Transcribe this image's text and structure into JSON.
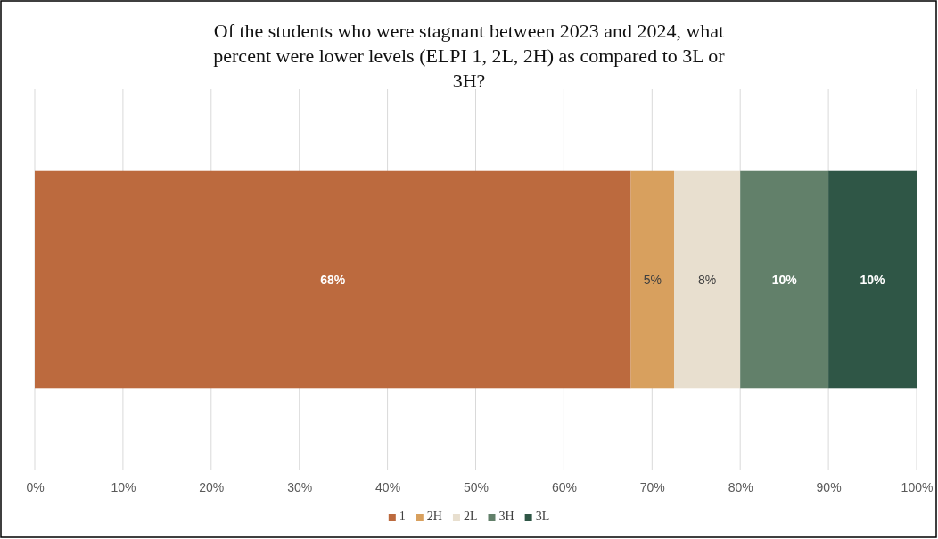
{
  "chart_data": {
    "type": "bar",
    "orientation": "horizontal",
    "stacked": true,
    "title": "Of the students who were stagnant between 2023 and 2024, what percent were lower levels (ELPI 1, 2L, 2H) as compared to 3L or 3H?",
    "categories": [
      null
    ],
    "series": [
      {
        "name": "1",
        "color": "#bc6a3e",
        "values": [
          67.6
        ],
        "value_labels": [
          "68%"
        ]
      },
      {
        "name": "2H",
        "color": "#d8a05e",
        "values": [
          4.9
        ],
        "value_labels": [
          "5%"
        ]
      },
      {
        "name": "2L",
        "color": "#e8dfcf",
        "values": [
          7.5
        ],
        "value_labels": [
          "8%"
        ]
      },
      {
        "name": "3H",
        "color": "#62806a",
        "values": [
          10
        ],
        "value_labels": [
          "10%"
        ]
      },
      {
        "name": "3L",
        "color": "#2f5646",
        "values": [
          10
        ],
        "value_labels": [
          "10%"
        ]
      }
    ],
    "xlim": [
      0,
      100
    ],
    "xticks": [
      {
        "value": 0,
        "label": "0%"
      },
      {
        "value": 10,
        "label": "10%"
      },
      {
        "value": 20,
        "label": "20%"
      },
      {
        "value": 30,
        "label": "30%"
      },
      {
        "value": 40,
        "label": "40%"
      },
      {
        "value": 50,
        "label": "50%"
      },
      {
        "value": 60,
        "label": "60%"
      },
      {
        "value": 70,
        "label": "70%"
      },
      {
        "value": 80,
        "label": "80%"
      },
      {
        "value": 90,
        "label": "90%"
      },
      {
        "value": 100,
        "label": "100%"
      }
    ],
    "grid": "x",
    "legend": "bottom"
  }
}
